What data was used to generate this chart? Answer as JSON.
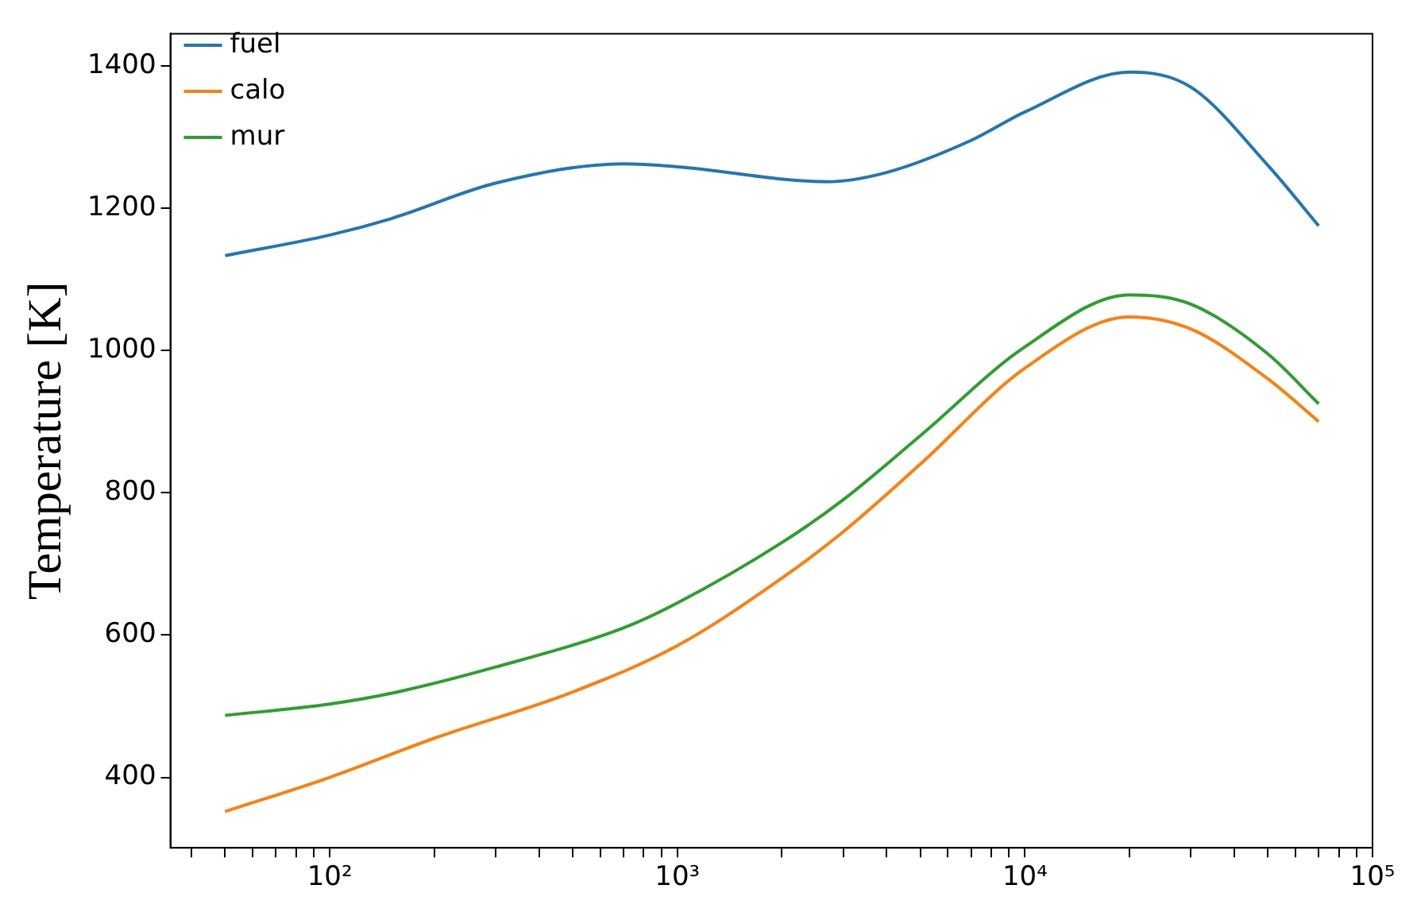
{
  "chart_data": {
    "type": "line",
    "ylabel": "Temperature [K]",
    "log": "x",
    "xlim": [
      34.8,
      100000
    ],
    "ylim": [
      301,
      1445
    ],
    "xticks": [
      {
        "value": 40,
        "label": null
      },
      {
        "value": 50,
        "label": null
      },
      {
        "value": 60,
        "label": null
      },
      {
        "value": 70,
        "label": null
      },
      {
        "value": 80,
        "label": null
      },
      {
        "value": 90,
        "label": null
      },
      {
        "value": 100,
        "label": "10²"
      },
      {
        "value": 200,
        "label": null
      },
      {
        "value": 300,
        "label": null
      },
      {
        "value": 400,
        "label": null
      },
      {
        "value": 500,
        "label": null
      },
      {
        "value": 600,
        "label": null
      },
      {
        "value": 700,
        "label": null
      },
      {
        "value": 800,
        "label": null
      },
      {
        "value": 900,
        "label": null
      },
      {
        "value": 1000,
        "label": "10³"
      },
      {
        "value": 2000,
        "label": null
      },
      {
        "value": 3000,
        "label": null
      },
      {
        "value": 4000,
        "label": null
      },
      {
        "value": 5000,
        "label": null
      },
      {
        "value": 6000,
        "label": null
      },
      {
        "value": 7000,
        "label": null
      },
      {
        "value": 8000,
        "label": null
      },
      {
        "value": 9000,
        "label": null
      },
      {
        "value": 10000,
        "label": "10⁴"
      },
      {
        "value": 20000,
        "label": null
      },
      {
        "value": 30000,
        "label": null
      },
      {
        "value": 40000,
        "label": null
      },
      {
        "value": 50000,
        "label": null
      },
      {
        "value": 60000,
        "label": null
      },
      {
        "value": 70000,
        "label": null
      },
      {
        "value": 80000,
        "label": null
      },
      {
        "value": 90000,
        "label": null
      },
      {
        "value": 100000,
        "label": "10⁵"
      }
    ],
    "yticks": [
      400,
      600,
      800,
      1000,
      1200,
      1400
    ],
    "grid": false,
    "legend": "top left",
    "marker": "none",
    "line_style": "solid",
    "series": [
      {
        "name": "fuel",
        "color": "#1f77b4",
        "x": [
          50,
          100,
          150,
          300,
          700,
          1000,
          2700,
          4000,
          7000,
          10000,
          20000,
          30000,
          50000,
          70000
        ],
        "values": [
          1133,
          1162,
          1185,
          1235,
          1262,
          1258,
          1237,
          1250,
          1295,
          1335,
          1391,
          1370,
          1260,
          1175
        ]
      },
      {
        "name": "calo",
        "color": "#ff7f0e",
        "x": [
          50,
          100,
          200,
          500,
          1000,
          2000,
          3000,
          5000,
          10000,
          20000,
          30000,
          50000,
          70000
        ],
        "values": [
          352,
          400,
          455,
          520,
          585,
          680,
          745,
          840,
          975,
          1047,
          1030,
          960,
          900
        ]
      },
      {
        "name": "mur",
        "color": "#2ca02c",
        "x": [
          50,
          100,
          150,
          300,
          700,
          1000,
          2000,
          3000,
          5000,
          10000,
          20000,
          30000,
          50000,
          70000
        ],
        "values": [
          487,
          503,
          518,
          555,
          610,
          645,
          730,
          790,
          880,
          1005,
          1078,
          1065,
          995,
          925
        ]
      }
    ]
  }
}
